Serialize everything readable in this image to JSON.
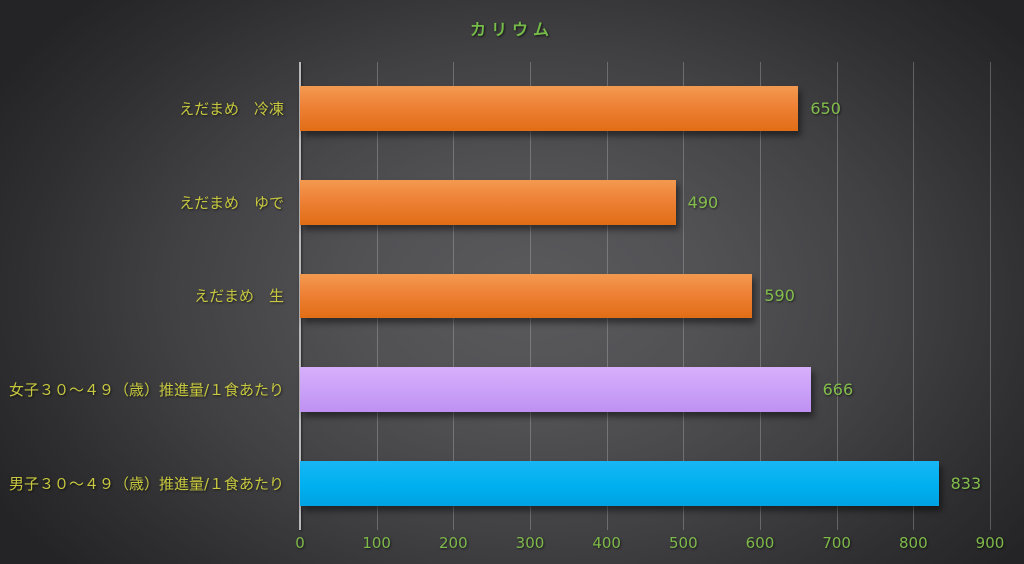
{
  "chart_data": {
    "type": "bar",
    "orientation": "horizontal",
    "title": "カリウム",
    "categories": [
      "えだまめ　冷凍",
      "えだまめ　ゆで",
      "えだまめ　生",
      "女子３０～４９（歳）推進量/１食あたり",
      "男子３０～４９（歳）推進量/１食あたり"
    ],
    "values": [
      650,
      490,
      590,
      666,
      833
    ],
    "bar_color_names": [
      "orange",
      "orange",
      "orange",
      "purple",
      "blue"
    ],
    "value_labels": [
      "650",
      "490",
      "590",
      "666",
      "833"
    ],
    "xlim": [
      0,
      900
    ],
    "xticks": [
      0,
      100,
      200,
      300,
      400,
      500,
      600,
      700,
      800,
      900
    ],
    "grid": true,
    "legend": false
  },
  "colors": {
    "bar_orange": "#ED7D31",
    "bar_purple": "#C9A0F7",
    "bar_blue": "#00B0F0",
    "title_text": "#76BC49",
    "value_text": "#83BD4C",
    "tick_text": "#7EB94A",
    "category_text": "#C7C83F",
    "gridline": "#A8A8A8",
    "background_center": "#5A5A5D",
    "background_edge": "#242426"
  }
}
